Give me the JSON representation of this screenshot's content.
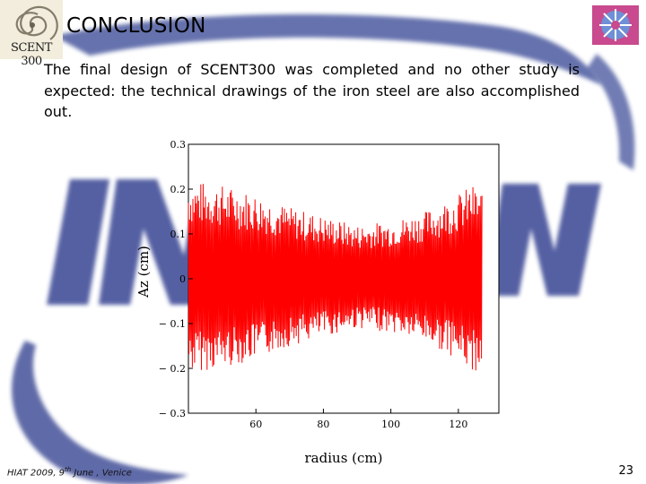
{
  "slide": {
    "title": "CONCLUSION",
    "body": "The final design of SCENT300 was completed and no other study is expected: the technical drawings of the iron steel are also accomplished out.",
    "logo_text": "SCENT 300",
    "footer_prefix": "HIAT 2009, 9",
    "footer_sup": "th",
    "footer_suffix": " June , Venice",
    "page_number": "23",
    "background_watermark": "INFN"
  },
  "colors": {
    "trace": "#ff0000",
    "watermark_blue": "#1e2f86",
    "watermark_cyan": "#57b6d6"
  },
  "chart_data": {
    "type": "line",
    "title": "",
    "xlabel": "radius (cm)",
    "ylabel": "Az (cm)",
    "xlim": [
      40,
      132
    ],
    "ylim": [
      -0.3,
      0.3
    ],
    "xticks": [
      "60",
      "80",
      "100",
      "120"
    ],
    "yticks": [
      "0.3",
      "0.2",
      "0.1",
      "0",
      "− 0.1",
      "− 0.2",
      "− 0.3"
    ],
    "series": [
      {
        "values_description": "",
        "envelope_x": [
          40,
          50,
          60,
          70,
          80,
          90,
          100,
          110,
          120,
          124,
          127
        ],
        "envelope_upper": [
          0.22,
          0.21,
          0.19,
          0.16,
          0.14,
          0.12,
          0.13,
          0.15,
          0.19,
          0.21,
          0.2
        ],
        "envelope_lower": [
          -0.21,
          -0.2,
          -0.18,
          -0.15,
          -0.13,
          -0.11,
          -0.12,
          -0.14,
          -0.18,
          -0.21,
          -0.2
        ]
      }
    ],
    "grid": false
  }
}
